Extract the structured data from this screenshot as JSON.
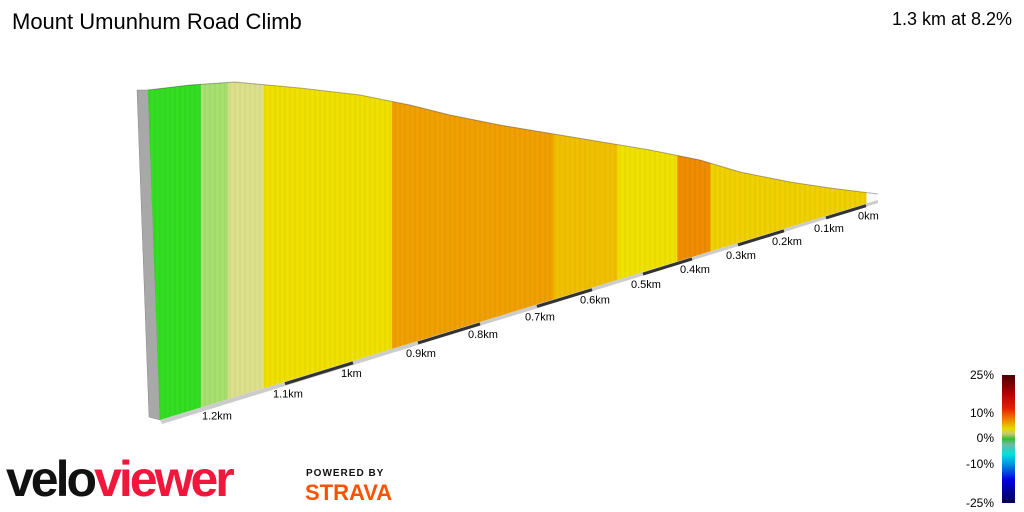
{
  "header": {
    "title": "Mount Umunhum Road Climb",
    "summary": "1.3 km at 8.2%"
  },
  "chart_data": {
    "type": "area",
    "title": "Mount Umunhum Road Climb",
    "subtitle": "1.3 km at 8.2%",
    "x_ticks": [
      "0km",
      "0.1km",
      "0.2km",
      "0.3km",
      "0.4km",
      "0.5km",
      "0.6km",
      "0.7km",
      "0.8km",
      "0.9km",
      "1km",
      "1.1km",
      "1.2km"
    ],
    "x_direction": "reversed (0km at right)",
    "grade_segments": [
      {
        "from_km": 1.3,
        "to_km": 1.22,
        "color": "#33dd22"
      },
      {
        "from_km": 1.22,
        "to_km": 1.18,
        "color": "#a8e070"
      },
      {
        "from_km": 1.18,
        "to_km": 1.13,
        "color": "#dde08a"
      },
      {
        "from_km": 1.13,
        "to_km": 0.94,
        "color": "#f0e000"
      },
      {
        "from_km": 0.94,
        "to_km": 0.67,
        "color": "#f0a000"
      },
      {
        "from_km": 0.67,
        "to_km": 0.55,
        "color": "#f0c000"
      },
      {
        "from_km": 0.55,
        "to_km": 0.43,
        "color": "#f0e200"
      },
      {
        "from_km": 0.43,
        "to_km": 0.36,
        "color": "#f08c00"
      },
      {
        "from_km": 0.36,
        "to_km": 0.0,
        "color": "#f0d000"
      }
    ],
    "legend": {
      "labels": [
        "25%",
        "10%",
        "0%",
        "-10%",
        "-25%"
      ],
      "placement": "bottom-right"
    }
  },
  "branding": {
    "velo": "velo",
    "viewer": "viewer",
    "powered_by": "POWERED BY",
    "strava": "STRAVA"
  }
}
